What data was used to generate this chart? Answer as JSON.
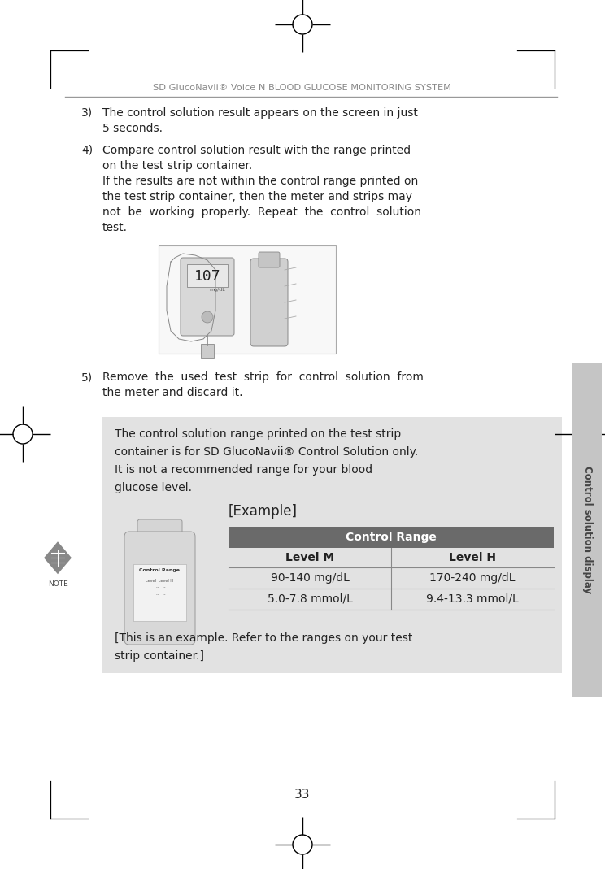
{
  "page_bg": "#ffffff",
  "sidebar_color": "#c5c5c5",
  "sidebar_text": "Control solution display",
  "sidebar_text_color": "#444444",
  "title": "SD GlucoNavii® Voice N BLOOD GLUCOSE MONITORING SYSTEM",
  "title_color": "#888888",
  "page_number": "33",
  "text_color": "#222222",
  "line_color": "#777777",
  "note_box_color": "#e2e2e2",
  "table_header_bg": "#6a6a6a",
  "table_header_color": "#ffffff",
  "col1_header": "Level M",
  "col2_header": "Level H",
  "row1_col1": "90-140 mg/dL",
  "row1_col2": "170-240 mg/dL",
  "row2_col1": "5.0-7.8 mmol/L",
  "row2_col2": "9.4-13.3 mmol/L"
}
